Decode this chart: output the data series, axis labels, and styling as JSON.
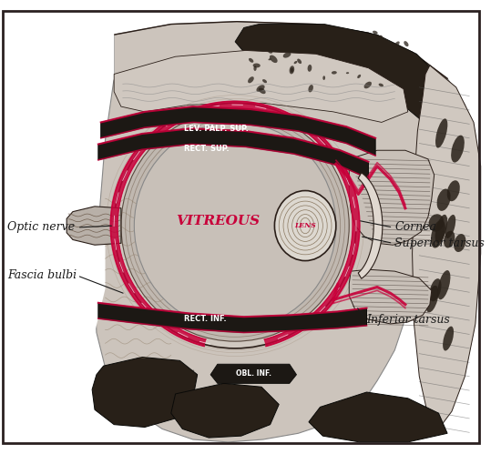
{
  "bg_color": "#ffffff",
  "labels": {
    "optic_nerve": "Optic nerve",
    "fascia_bulbi": "Fascia bulbi",
    "vitreous": "VITREOUS",
    "lens": "LENS",
    "cornea": "Cornea",
    "superior_tarsus": "Superior tarsus",
    "inferior_tarsus": "Inferior tarsus",
    "lev_palp": "LEV. PALP. SUP.",
    "rect_sup": "RECT. SUP.",
    "rect_inf": "RECT. INF.",
    "obl_inf": "OBL. INF."
  },
  "label_color_black": "#1a1a1a",
  "label_color_red": "#c8003a",
  "muscle_dark": "#1c1814",
  "fascia_red": "#c8003a",
  "sclera_color": "#c8c0b8",
  "vitreous_color": "#c0b8b0",
  "fat_dark": "#282018",
  "border_color": "#2a2020",
  "tissue_gray": "#c0b8b2",
  "tissue_light": "#d8d0c8",
  "line_dark": "#2a1e18",
  "eyelid_color": "#d0c8c0",
  "cornea_color": "#e0d8d0"
}
